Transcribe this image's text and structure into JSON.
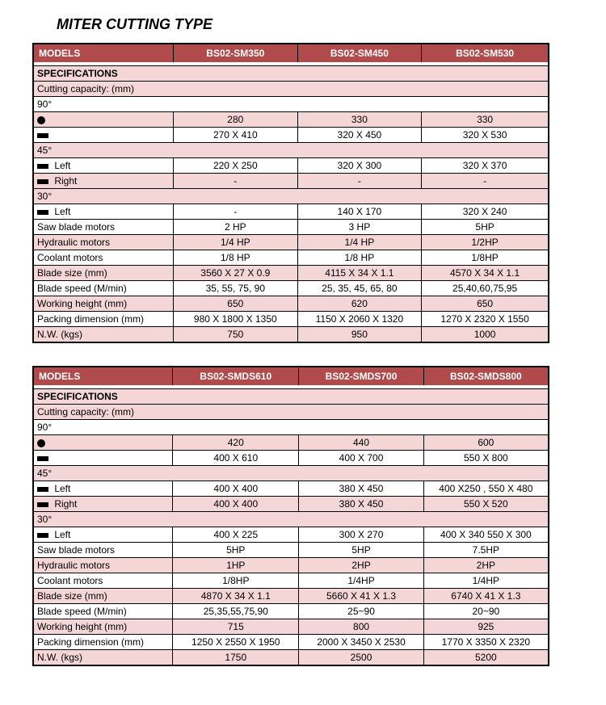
{
  "page_title": "MITER CUTTING TYPE",
  "tables": [
    {
      "models_label": "MODELS",
      "models": [
        "BS02-SM350",
        "BS02-SM450",
        "BS02-SM530"
      ],
      "spec_label": "SPECIFICATIONS",
      "cutcap_label": "Cutting capacity: (mm)",
      "angle90": "90°",
      "circle_row": [
        "280",
        "330",
        "330"
      ],
      "rect_row": [
        "270 X 410",
        "320 X 450",
        "320 X 530"
      ],
      "angle45": "45°",
      "left_label": "Left",
      "right_label": "Right",
      "left45": [
        "220  X 250",
        "320 X 300",
        "320 X 370"
      ],
      "right45": [
        "-",
        "-",
        "-"
      ],
      "angle30": "30°",
      "left30": [
        "-",
        "140 X 170",
        "320 X 240"
      ],
      "rows": [
        {
          "label": "Saw blade motors",
          "vals": [
            "2 HP",
            "3 HP",
            "5HP"
          ],
          "shade": "white"
        },
        {
          "label": "Hydraulic motors",
          "vals": [
            "1/4 HP",
            "1/4 HP",
            "1/2HP"
          ],
          "shade": "pink"
        },
        {
          "label": "Coolant motors",
          "vals": [
            "1/8 HP",
            "1/8 HP",
            "1/8HP"
          ],
          "shade": "white"
        },
        {
          "label": "Blade size (mm)",
          "vals": [
            "3560 X 27 X 0.9",
            "4115 X 34 X 1.1",
            "4570 X 34 X 1.1"
          ],
          "shade": "pink"
        },
        {
          "label": "Blade speed (M/min)",
          "vals": [
            "35, 55, 75, 90",
            "25, 35, 45, 65, 80",
            "25,40,60,75,95"
          ],
          "shade": "white"
        },
        {
          "label": "Working height (mm)",
          "vals": [
            "650",
            "620",
            "650"
          ],
          "shade": "pink"
        },
        {
          "label": "Packing dimension (mm)",
          "vals": [
            "980 X 1800 X 1350",
            "1150 X 2060 X 1320",
            "1270 X 2320 X 1550"
          ],
          "shade": "white"
        },
        {
          "label": "N.W. (kgs)",
          "vals": [
            "750",
            "950",
            "1000"
          ],
          "shade": "pink"
        }
      ]
    },
    {
      "models_label": "MODELS",
      "models": [
        "BS02-SMDS610",
        "BS02-SMDS700",
        "BS02-SMDS800"
      ],
      "spec_label": "SPECIFICATIONS",
      "cutcap_label": "Cutting capacity: (mm)",
      "angle90": "90°",
      "circle_row": [
        "420",
        "440",
        "600"
      ],
      "rect_row": [
        "400 X 610",
        "400 X 700",
        "550 X 800"
      ],
      "angle45": "45°",
      "left_label": "Left",
      "right_label": "Right",
      "left45": [
        "400 X 400",
        "380 X 450",
        "400 X250 , 550 X 480"
      ],
      "right45": [
        "400 X 400",
        "380 X 450",
        "550 X 520"
      ],
      "angle30": "30°",
      "left30": [
        "400 X 225",
        "300 X 270",
        "400 X 340  550 X 300"
      ],
      "rows": [
        {
          "label": "Saw blade motors",
          "vals": [
            "5HP",
            "5HP",
            "7.5HP"
          ],
          "shade": "white"
        },
        {
          "label": "Hydraulic motors",
          "vals": [
            "1HP",
            "2HP",
            "2HP"
          ],
          "shade": "pink"
        },
        {
          "label": "Coolant motors",
          "vals": [
            "1/8HP",
            "1/4HP",
            "1/4HP"
          ],
          "shade": "white"
        },
        {
          "label": "Blade size (mm)",
          "vals": [
            "4870 X 34 X 1.1",
            "5660 X 41 X 1.3",
            "6740 X 41 X 1.3"
          ],
          "shade": "pink"
        },
        {
          "label": "Blade speed (M/min)",
          "vals": [
            "25,35,55,75,90",
            "25~90",
            "20~90"
          ],
          "shade": "white"
        },
        {
          "label": "Working height (mm)",
          "vals": [
            "715",
            "800",
            "925"
          ],
          "shade": "pink"
        },
        {
          "label": "Packing dimension (mm)",
          "vals": [
            "1250 X 2550 X 1950",
            "2000 X 3450 X 2530",
            "1770 X 3350 X 2320"
          ],
          "shade": "white"
        },
        {
          "label": "N.W. (kgs)",
          "vals": [
            "1750",
            "2500",
            "5200"
          ],
          "shade": "pink"
        }
      ]
    }
  ]
}
